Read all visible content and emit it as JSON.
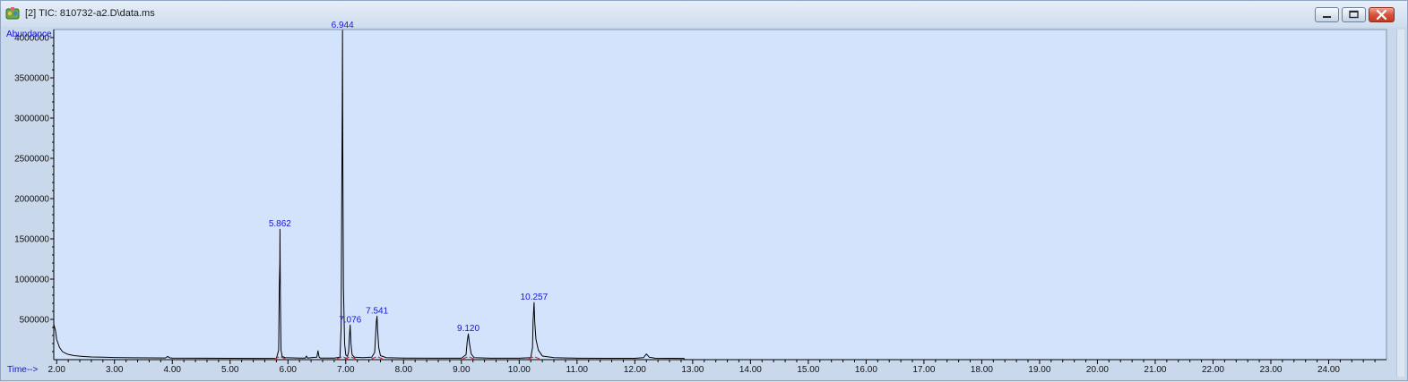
{
  "window": {
    "title": "[2] TIC: 810732-a2.D\\data.ms",
    "icon": "chromatogram-icon",
    "controls": [
      "minimize-icon",
      "maximize-icon",
      "close-icon"
    ]
  },
  "colors": {
    "plot_background": "#d3e3fb",
    "trace": "#000000",
    "peak_label": "#1515d6",
    "baseline_marker": "#d02020",
    "axis_label": "#1515d6"
  },
  "chart_data": {
    "type": "line",
    "title": "",
    "xlabel": "Time-->",
    "ylabel": "Abundance",
    "xlim": [
      1.95,
      25.0
    ],
    "ylim": [
      0,
      4100000
    ],
    "grid": false,
    "x_ticks": [
      "2.00",
      "3.00",
      "4.00",
      "5.00",
      "6.00",
      "7.00",
      "8.00",
      "9.00",
      "10.00",
      "11.00",
      "12.00",
      "13.00",
      "14.00",
      "15.00",
      "16.00",
      "17.00",
      "18.00",
      "19.00",
      "20.00",
      "21.00",
      "22.00",
      "23.00",
      "24.00"
    ],
    "y_ticks": [
      "500000",
      "1000000",
      "1500000",
      "2000000",
      "2500000",
      "3000000",
      "3500000",
      "4000000"
    ],
    "series": [
      {
        "type": "line",
        "x": [
          1.95,
          1.98,
          2.0,
          2.05,
          2.1,
          2.15,
          2.2,
          2.3,
          2.4,
          2.5,
          2.6,
          2.8,
          3.0,
          3.3,
          3.6,
          3.88,
          3.92,
          3.96,
          4.0,
          4.5,
          5.0,
          5.5,
          5.8,
          5.84,
          5.85,
          5.86,
          5.862,
          5.87,
          5.88,
          5.9,
          5.95,
          6.2,
          6.3,
          6.32,
          6.34,
          6.4,
          6.5,
          6.52,
          6.54,
          6.56,
          6.8,
          6.9,
          6.92,
          6.93,
          6.94,
          6.944,
          6.95,
          6.96,
          6.98,
          7.0,
          7.03,
          7.05,
          7.06,
          7.076,
          7.09,
          7.11,
          7.15,
          7.3,
          7.45,
          7.5,
          7.52,
          7.53,
          7.541,
          7.55,
          7.57,
          7.6,
          7.7,
          8.0,
          8.5,
          9.0,
          9.08,
          9.1,
          9.12,
          9.14,
          9.17,
          9.22,
          9.5,
          10.0,
          10.2,
          10.23,
          10.24,
          10.257,
          10.27,
          10.29,
          10.33,
          10.4,
          10.6,
          11.0,
          11.5,
          12.0,
          12.15,
          12.2,
          12.25,
          12.35,
          12.6,
          12.85,
          12.86,
          25.0
        ],
        "y": [
          440000,
          360000,
          250000,
          150000,
          100000,
          80000,
          65000,
          50000,
          43000,
          38000,
          34000,
          30000,
          27000,
          24000,
          22000,
          21000,
          40000,
          22000,
          20000,
          18000,
          16000,
          15000,
          16000,
          120000,
          900000,
          1200000,
          1620000,
          700000,
          120000,
          40000,
          25000,
          20000,
          20000,
          45000,
          20000,
          25000,
          30000,
          110000,
          30000,
          20000,
          20000,
          30000,
          400000,
          1900000,
          3200000,
          4090000,
          2400000,
          900000,
          200000,
          60000,
          40000,
          100000,
          250000,
          430000,
          200000,
          60000,
          30000,
          25000,
          30000,
          90000,
          350000,
          480000,
          540000,
          380000,
          150000,
          50000,
          25000,
          20000,
          18000,
          18000,
          60000,
          220000,
          320000,
          200000,
          70000,
          25000,
          18000,
          18000,
          25000,
          150000,
          480000,
          710000,
          450000,
          250000,
          120000,
          45000,
          25000,
          18000,
          17000,
          17000,
          25000,
          70000,
          30000,
          18000,
          16000,
          15000,
          0,
          0
        ]
      }
    ],
    "peak_labels": [
      {
        "rt": 5.862,
        "label": "5.862",
        "y": 1620000
      },
      {
        "rt": 6.944,
        "label": "6.944",
        "y": 4090000
      },
      {
        "rt": 7.076,
        "label": "7.076",
        "y": 430000
      },
      {
        "rt": 7.541,
        "label": "7.541",
        "y": 540000
      },
      {
        "rt": 9.12,
        "label": "9.120",
        "y": 320000
      },
      {
        "rt": 10.257,
        "label": "10.257",
        "y": 710000
      }
    ]
  }
}
